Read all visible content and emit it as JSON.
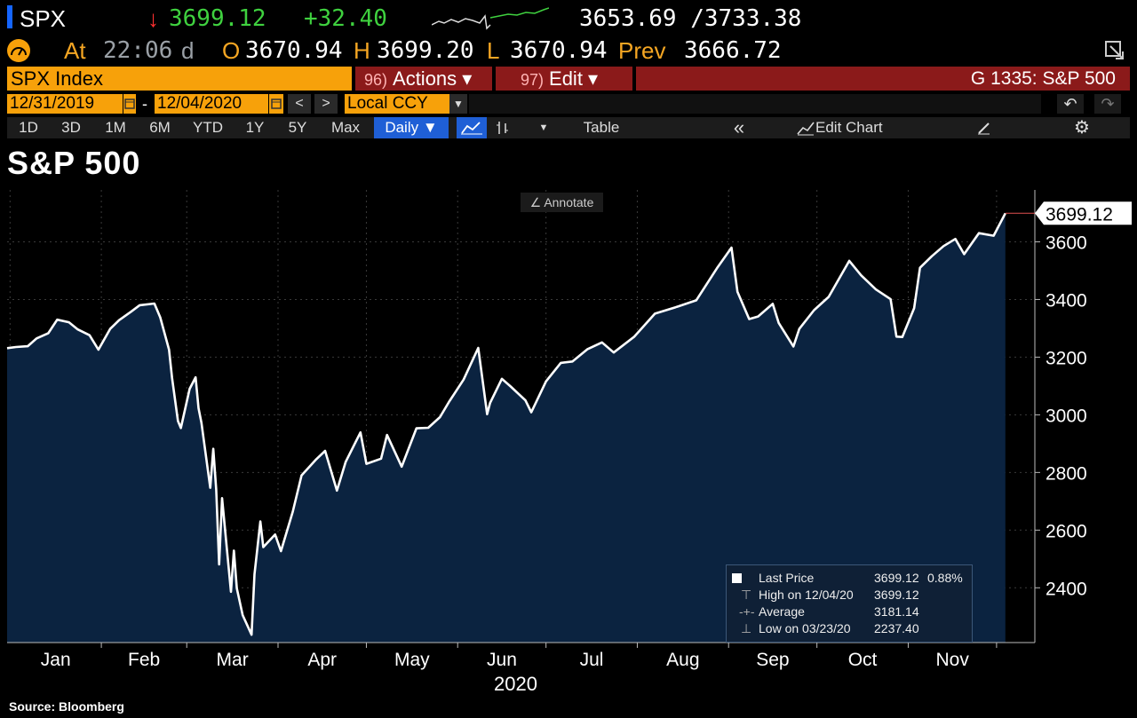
{
  "quote": {
    "ticker": "SPX",
    "arrow": "↓",
    "last": "3699.12",
    "change": "+32.40",
    "range": "3653.69 /3733.38",
    "at_label": "At",
    "time": "22:06",
    "time_suffix": "d",
    "open_label": "O",
    "open": "3670.94",
    "high_label": "H",
    "high": "3699.20",
    "low_label": "L",
    "low": "3670.94",
    "prev_label": "Prev",
    "prev": "3666.72"
  },
  "toolbar": {
    "index_name": "SPX Index",
    "actions_num": "96)",
    "actions_label": "Actions ▾",
    "edit_num": "97)",
    "edit_label": "Edit ▾",
    "graph_title": "G 1335: S&P 500",
    "start_date": "12/31/2019",
    "dash": "-",
    "end_date": "12/04/2020",
    "prev_btn": "<",
    "next_btn": ">",
    "currency": "Local CCY",
    "undo": "↶",
    "redo": "↷",
    "ranges": [
      "1D",
      "3D",
      "1M",
      "6M",
      "YTD",
      "1Y",
      "5Y",
      "Max"
    ],
    "frequency": "Daily ▼",
    "table_label": "Table",
    "collapse": "«",
    "edit_chart_label": "Edit Chart",
    "gear": "⚙"
  },
  "chart_title": "S&P 500",
  "annotate_label": "Annotate",
  "colors": {
    "background": "#000000",
    "area_fill": "#0b2340",
    "line": "#ffffff",
    "last_price_box": "#ffffff",
    "orange_field": "#f7a10a",
    "red_bar": "#8b1a1a",
    "selected": "#1f5fd6"
  },
  "legend": {
    "last_label": "Last Price",
    "last_value": "3699.12",
    "last_pct": "0.88%",
    "high_label": "High on 12/04/20",
    "high_value": "3699.12",
    "avg_label": "Average",
    "avg_value": "3181.14",
    "low_label": "Low on 03/23/20",
    "low_value": "2237.40"
  },
  "source": "Source: Bloomberg",
  "chart_data": {
    "type": "area",
    "title": "S&P 500",
    "xlabel": "2020",
    "ylabel": "",
    "x_tick_labels": [
      "Jan",
      "Feb",
      "Mar",
      "Apr",
      "May",
      "Jun",
      "Jul",
      "Aug",
      "Sep",
      "Oct",
      "Nov"
    ],
    "y_ticks": [
      2400,
      2600,
      2800,
      3000,
      3200,
      3400,
      3600
    ],
    "ylim": [
      2210,
      3780
    ],
    "xlim": [
      "2019-12-31",
      "2020-12-14"
    ],
    "last_price_label": "3699.12",
    "grid": true,
    "series": [
      {
        "x": [
          "2019-12-31",
          "2020-01-03",
          "2020-01-07",
          "2020-01-10",
          "2020-01-14",
          "2020-01-17",
          "2020-01-21",
          "2020-01-24",
          "2020-01-28",
          "2020-01-31",
          "2020-02-04",
          "2020-02-07",
          "2020-02-11",
          "2020-02-14",
          "2020-02-19",
          "2020-02-21",
          "2020-02-24",
          "2020-02-25",
          "2020-02-27",
          "2020-02-28",
          "2020-03-02",
          "2020-03-04",
          "2020-03-05",
          "2020-03-06",
          "2020-03-09",
          "2020-03-10",
          "2020-03-11",
          "2020-03-12",
          "2020-03-13",
          "2020-03-16",
          "2020-03-17",
          "2020-03-18",
          "2020-03-20",
          "2020-03-23",
          "2020-03-24",
          "2020-03-26",
          "2020-03-27",
          "2020-03-31",
          "2020-04-02",
          "2020-04-06",
          "2020-04-09",
          "2020-04-14",
          "2020-04-17",
          "2020-04-21",
          "2020-04-24",
          "2020-04-29",
          "2020-05-01",
          "2020-05-06",
          "2020-05-08",
          "2020-05-13",
          "2020-05-18",
          "2020-05-22",
          "2020-05-26",
          "2020-05-29",
          "2020-06-03",
          "2020-06-08",
          "2020-06-11",
          "2020-06-12",
          "2020-06-16",
          "2020-06-19",
          "2020-06-24",
          "2020-06-26",
          "2020-07-01",
          "2020-07-06",
          "2020-07-10",
          "2020-07-15",
          "2020-07-20",
          "2020-07-24",
          "2020-07-31",
          "2020-08-07",
          "2020-08-14",
          "2020-08-21",
          "2020-08-28",
          "2020-09-02",
          "2020-09-04",
          "2020-09-08",
          "2020-09-11",
          "2020-09-16",
          "2020-09-18",
          "2020-09-23",
          "2020-09-25",
          "2020-09-30",
          "2020-10-05",
          "2020-10-12",
          "2020-10-16",
          "2020-10-21",
          "2020-10-26",
          "2020-10-28",
          "2020-10-30",
          "2020-11-03",
          "2020-11-05",
          "2020-11-09",
          "2020-11-13",
          "2020-11-17",
          "2020-11-20",
          "2020-11-25",
          "2020-11-30",
          "2020-12-04"
        ],
        "y": [
          3231,
          3235,
          3238,
          3265,
          3283,
          3330,
          3321,
          3296,
          3276,
          3226,
          3298,
          3328,
          3357,
          3380,
          3386,
          3338,
          3226,
          3128,
          2979,
          2954,
          3090,
          3130,
          3023,
          2972,
          2747,
          2882,
          2741,
          2481,
          2711,
          2386,
          2529,
          2398,
          2305,
          2237,
          2447,
          2630,
          2541,
          2585,
          2527,
          2664,
          2790,
          2846,
          2875,
          2737,
          2837,
          2939,
          2830,
          2848,
          2930,
          2820,
          2953,
          2955,
          2992,
          3044,
          3122,
          3232,
          3002,
          3041,
          3125,
          3098,
          3050,
          3009,
          3116,
          3180,
          3185,
          3227,
          3251,
          3216,
          3271,
          3351,
          3373,
          3397,
          3508,
          3580,
          3427,
          3332,
          3341,
          3385,
          3319,
          3237,
          3298,
          3363,
          3409,
          3534,
          3484,
          3435,
          3401,
          3271,
          3270,
          3370,
          3510,
          3550,
          3585,
          3610,
          3557,
          3630,
          3621,
          3699
        ]
      }
    ]
  }
}
